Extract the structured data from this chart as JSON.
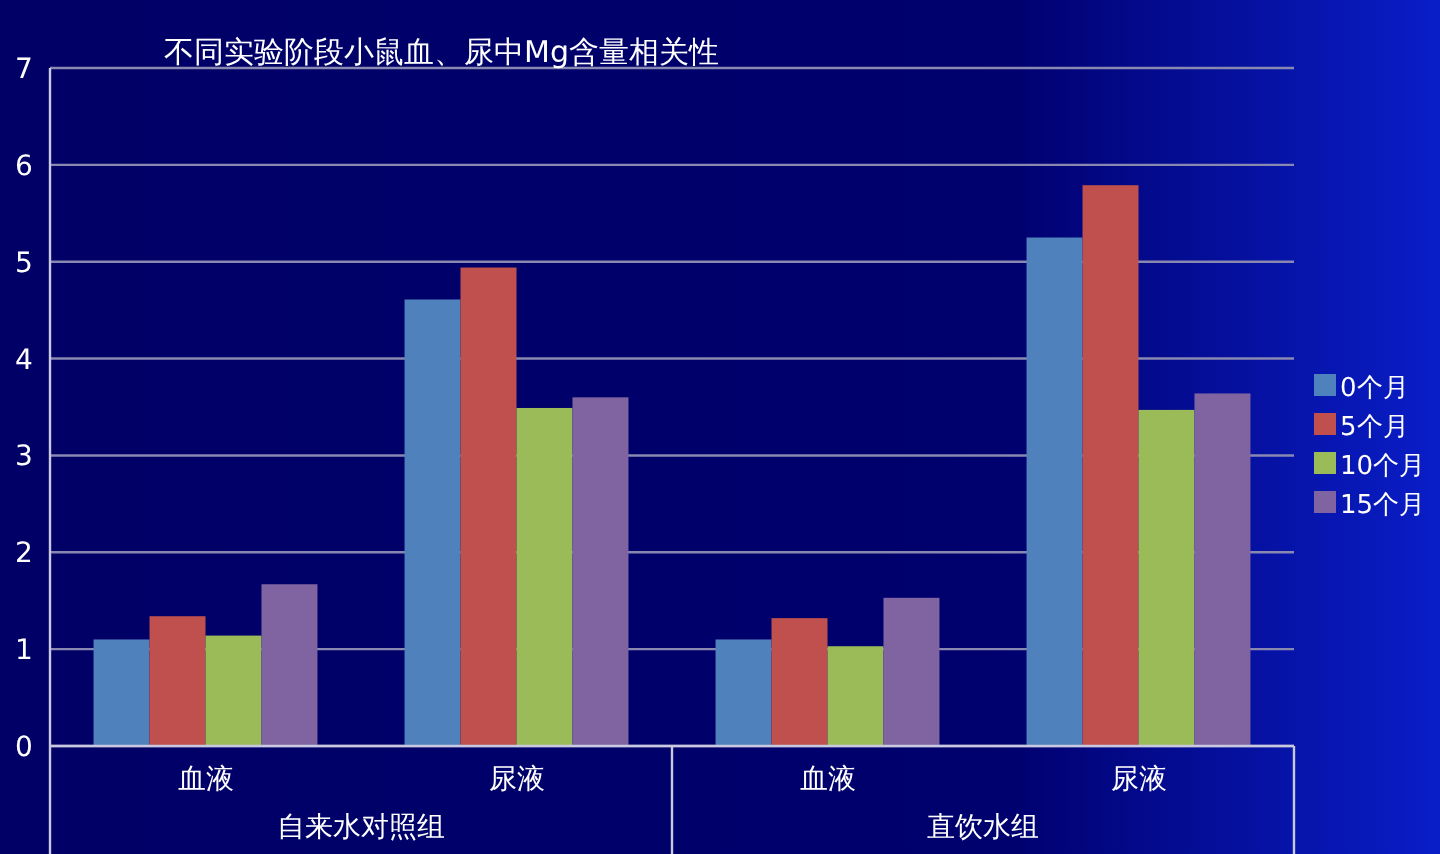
{
  "chart_data": {
    "type": "bar",
    "title": "不同实验阶段小鼠血、尿中Mg含量相关性",
    "categories": [
      "血液",
      "尿液",
      "血液",
      "尿液"
    ],
    "annotations": [
      "自来水对照组",
      "直饮水组"
    ],
    "series": [
      {
        "name": "0个月",
        "color": "#4f81bd",
        "values": [
          1.1,
          4.61,
          1.1,
          5.25
        ]
      },
      {
        "name": "5个月",
        "color": "#c0504d",
        "values": [
          1.34,
          4.94,
          1.32,
          5.79
        ]
      },
      {
        "name": "10个月",
        "color": "#9bbb59",
        "values": [
          1.14,
          3.49,
          1.03,
          3.47
        ]
      },
      {
        "name": "15个月",
        "color": "#8064a2",
        "values": [
          1.67,
          3.6,
          1.53,
          3.64
        ]
      }
    ],
    "ylim": [
      0,
      7
    ],
    "yticks": [
      0,
      1,
      2,
      3,
      4,
      5,
      6,
      7
    ],
    "grid": "y",
    "legend": "right"
  }
}
